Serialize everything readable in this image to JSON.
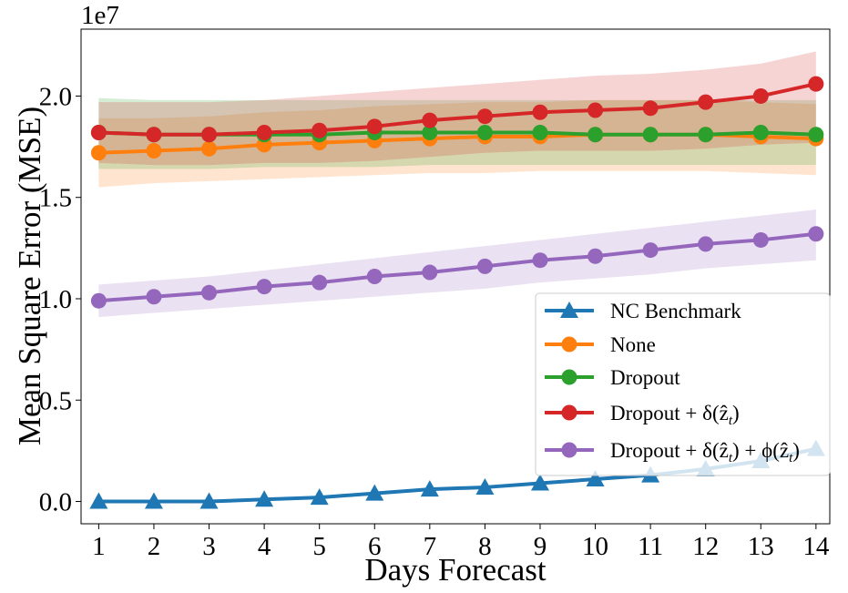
{
  "chart_data": {
    "type": "line",
    "title": "",
    "xlabel": "Days Forecast",
    "ylabel": "Mean Square Error (MSE)",
    "y_offset_label": "1e7",
    "x": [
      1,
      2,
      3,
      4,
      5,
      6,
      7,
      8,
      9,
      10,
      11,
      12,
      13,
      14
    ],
    "xlim": [
      0.68,
      14.25
    ],
    "ylim": [
      -0.11,
      2.33
    ],
    "y_scale_note": "values in units of 1e7",
    "y_ticks": [
      0.0,
      0.5,
      1.0,
      1.5,
      2.0
    ],
    "y_tick_labels": [
      "0.0",
      "0.5",
      "1.0",
      "1.5",
      "2.0"
    ],
    "x_tick_labels": [
      "1",
      "2",
      "3",
      "4",
      "5",
      "6",
      "7",
      "8",
      "9",
      "10",
      "11",
      "12",
      "13",
      "14"
    ],
    "legend_position": "lower-right",
    "series": [
      {
        "name": "NC Benchmark",
        "legend_label": "NC Benchmark",
        "color": "#1f77b4",
        "marker": "triangle",
        "values": [
          0.0,
          0.0,
          0.0,
          0.01,
          0.02,
          0.04,
          0.06,
          0.07,
          0.09,
          0.11,
          0.13,
          0.16,
          0.2,
          0.26
        ],
        "band_lower": null,
        "band_upper": null
      },
      {
        "name": "None",
        "legend_label": "None",
        "color": "#ff7f0e",
        "marker": "circle",
        "values": [
          1.72,
          1.73,
          1.74,
          1.76,
          1.77,
          1.78,
          1.79,
          1.8,
          1.8,
          1.81,
          1.81,
          1.81,
          1.8,
          1.79
        ],
        "band_lower": [
          1.55,
          1.57,
          1.58,
          1.59,
          1.6,
          1.61,
          1.62,
          1.62,
          1.63,
          1.63,
          1.63,
          1.63,
          1.62,
          1.61
        ],
        "band_upper": [
          1.89,
          1.89,
          1.9,
          1.92,
          1.93,
          1.95,
          1.96,
          1.97,
          1.97,
          1.98,
          1.98,
          1.98,
          1.97,
          1.96
        ]
      },
      {
        "name": "Dropout",
        "legend_label": "Dropout",
        "color": "#2ca02c",
        "marker": "circle",
        "values": [
          1.82,
          1.81,
          1.81,
          1.81,
          1.81,
          1.82,
          1.82,
          1.82,
          1.82,
          1.81,
          1.81,
          1.81,
          1.82,
          1.81
        ],
        "band_lower": [
          1.64,
          1.64,
          1.64,
          1.65,
          1.65,
          1.65,
          1.66,
          1.66,
          1.66,
          1.66,
          1.66,
          1.66,
          1.66,
          1.66
        ],
        "band_upper": [
          1.99,
          1.98,
          1.98,
          1.98,
          1.98,
          1.98,
          1.98,
          1.98,
          1.98,
          1.98,
          1.98,
          1.98,
          1.98,
          1.98
        ]
      },
      {
        "name": "Dropout + delta(z_t)",
        "legend_label": "Dropout + δ(ẑ",
        "legend_sub": "t",
        "legend_tail": ")",
        "color": "#d62728",
        "marker": "circle",
        "values": [
          1.82,
          1.81,
          1.81,
          1.82,
          1.83,
          1.85,
          1.88,
          1.9,
          1.92,
          1.93,
          1.94,
          1.97,
          2.0,
          2.06
        ],
        "band_lower": [
          1.67,
          1.66,
          1.66,
          1.67,
          1.67,
          1.68,
          1.7,
          1.72,
          1.73,
          1.73,
          1.73,
          1.74,
          1.76,
          1.77
        ],
        "band_upper": [
          1.97,
          1.97,
          1.97,
          1.98,
          2.0,
          2.02,
          2.04,
          2.06,
          2.08,
          2.1,
          2.11,
          2.13,
          2.16,
          2.22
        ]
      },
      {
        "name": "Dropout + delta(z_t) + phi(z_t)",
        "legend_label": "Dropout + δ(ẑ",
        "legend_sub": "t",
        "legend_mid": ") + ϕ(ẑ",
        "legend_sub2": "t",
        "legend_tail": ")",
        "color": "#9467bd",
        "marker": "circle",
        "values": [
          0.99,
          1.01,
          1.03,
          1.06,
          1.08,
          1.11,
          1.13,
          1.16,
          1.19,
          1.21,
          1.24,
          1.27,
          1.29,
          1.32
        ],
        "band_lower": [
          0.91,
          0.93,
          0.95,
          0.97,
          0.99,
          1.01,
          1.03,
          1.05,
          1.08,
          1.1,
          1.12,
          1.15,
          1.17,
          1.19
        ],
        "band_upper": [
          1.07,
          1.09,
          1.11,
          1.14,
          1.17,
          1.2,
          1.23,
          1.26,
          1.29,
          1.32,
          1.35,
          1.38,
          1.41,
          1.44
        ]
      }
    ]
  }
}
